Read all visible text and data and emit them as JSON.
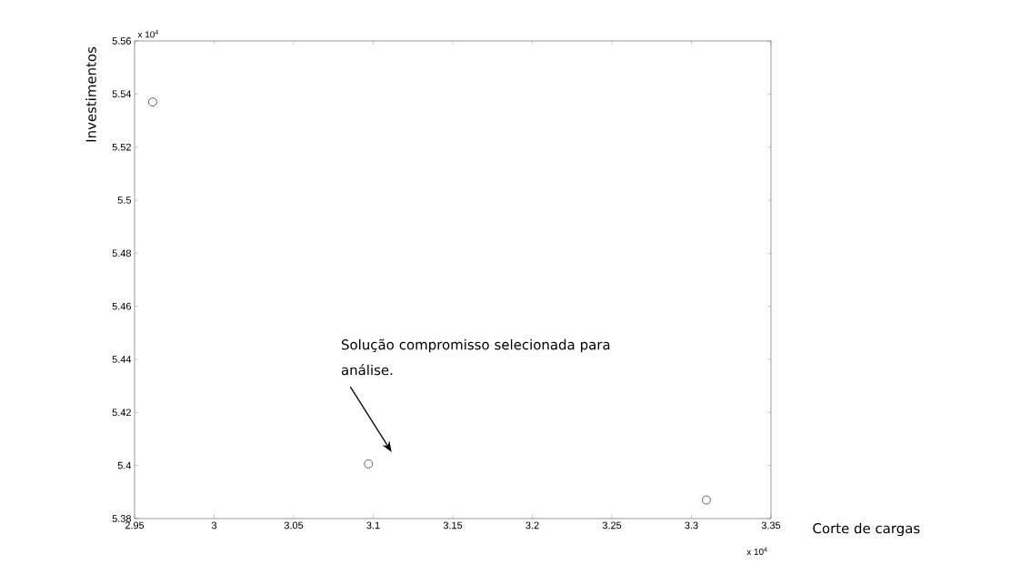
{
  "chart_data": {
    "type": "scatter",
    "xlabel": "Corte de cargas",
    "ylabel": "Investimentos",
    "x": [
      2.9614,
      3.097,
      3.3094
    ],
    "values": [
      5.537,
      5.4006,
      5.387
    ],
    "color": "#000000",
    "marker": "circle",
    "xlim": [
      2.95,
      3.35
    ],
    "xticks": [
      2.95,
      3,
      3.05,
      3.1,
      3.15,
      3.2,
      3.25,
      3.3,
      3.35
    ],
    "ylim": [
      5.38,
      5.56
    ],
    "yticks": [
      5.38,
      5.4,
      5.42,
      5.44,
      5.46,
      5.48,
      5.5,
      5.52,
      5.54,
      5.56
    ],
    "grid": false,
    "annotations": [
      "x 10$^{4}$",
      "x 10$^{4}$",
      "Solução compromisso selecionada para análise."
    ]
  }
}
